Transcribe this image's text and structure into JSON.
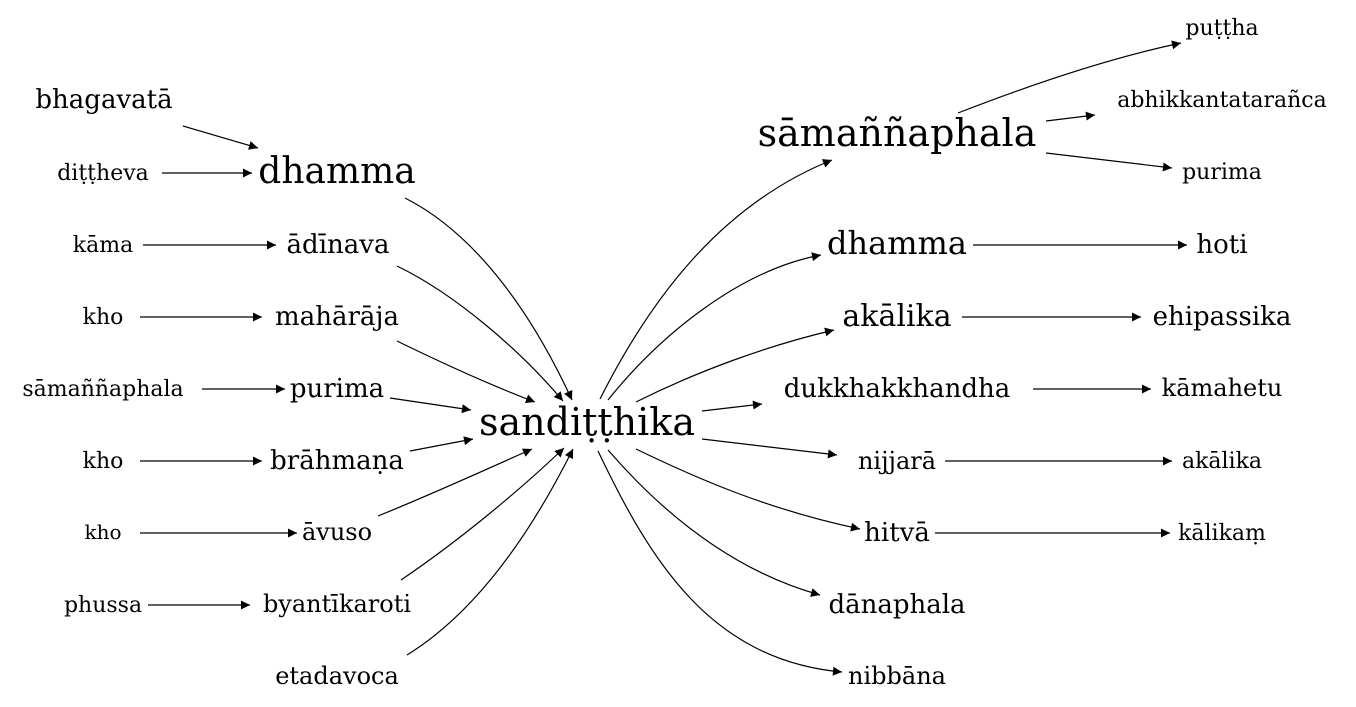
{
  "nodes": {
    "center": "sandiṭṭhika",
    "in_bhagavata": "bhagavatā",
    "in_dittheva": "diṭṭheva",
    "in_dhamma": "dhamma",
    "in_kama": "kāma",
    "in_adinava": "ādīnava",
    "in_kho1": "kho",
    "in_maharaja": "mahārāja",
    "in_samannaphala": "sāmaññaphala",
    "in_purima": "purima",
    "in_kho2": "kho",
    "in_brahmana": "brāhmaṇa",
    "in_kho3": "kho",
    "in_avuso": "āvuso",
    "in_phussa": "phussa",
    "in_byantikaroti": "byantīkaroti",
    "in_etadavoca": "etadavoca",
    "out_samannaphala": "sāmaññaphala",
    "out_puttha": "puṭṭha",
    "out_abhikkanta": "abhikkantatarañca",
    "out_purima": "purima",
    "out_dhamma": "dhamma",
    "out_hoti": "hoti",
    "out_akalika": "akālika",
    "out_ehipassika": "ehipassika",
    "out_dukkha": "dukkhakkhandha",
    "out_kamahetu": "kāmahetu",
    "out_nijjara": "nijjarā",
    "out_akalika2": "akālika",
    "out_hitva": "hitvā",
    "out_kalikam": "kālikaṃ",
    "out_danaphala": "dānaphala",
    "out_nibbana": "nibbāna"
  }
}
